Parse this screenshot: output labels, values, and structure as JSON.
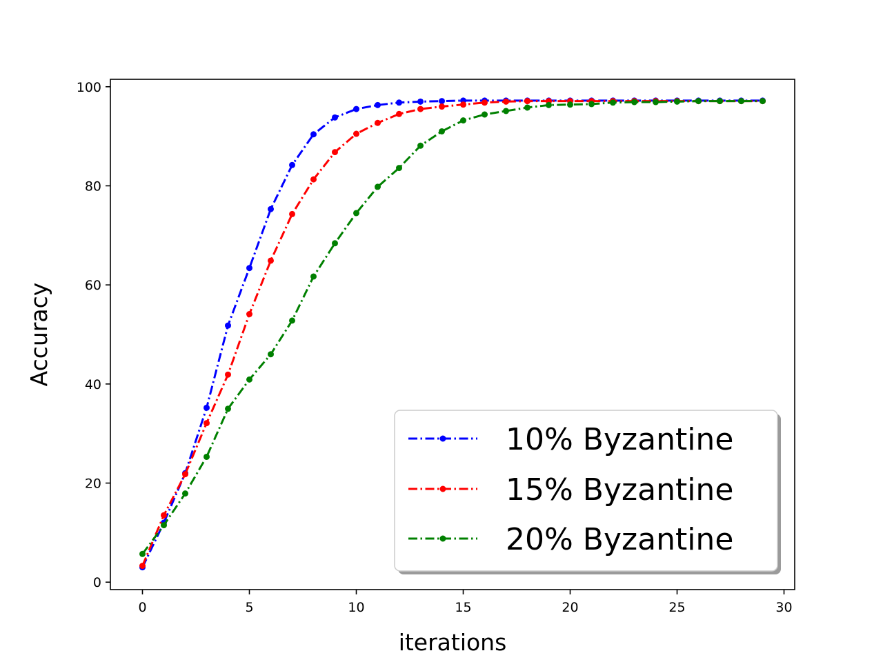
{
  "chart_data": {
    "type": "line",
    "xlabel": "iterations",
    "ylabel": "Accuracy",
    "xlim": [
      -1.5,
      30.5
    ],
    "ylim": [
      -1.5,
      101.5
    ],
    "xticks": [
      0,
      5,
      10,
      15,
      20,
      25,
      30
    ],
    "yticks": [
      0,
      20,
      40,
      60,
      80,
      100
    ],
    "grid": false,
    "legend_position": "bottom-right",
    "x": [
      0,
      1,
      2,
      3,
      4,
      5,
      6,
      7,
      8,
      9,
      10,
      11,
      12,
      13,
      14,
      15,
      16,
      17,
      18,
      19,
      20,
      21,
      22,
      23,
      24,
      25,
      26,
      27,
      28,
      29
    ],
    "series": [
      {
        "name": "10% Byzantine",
        "color": "#0000ff",
        "values": [
          3.0,
          12.0,
          22.0,
          35.2,
          51.8,
          63.4,
          75.3,
          84.2,
          90.4,
          93.8,
          95.5,
          96.3,
          96.8,
          97.0,
          97.1,
          97.2,
          97.2,
          97.2,
          97.2,
          97.2,
          97.2,
          97.2,
          97.2,
          97.2,
          97.2,
          97.2,
          97.2,
          97.2,
          97.2,
          97.2
        ]
      },
      {
        "name": "15% Byzantine",
        "color": "#ff0000",
        "values": [
          3.3,
          13.5,
          21.8,
          32.1,
          41.9,
          54.1,
          64.9,
          74.3,
          81.3,
          86.8,
          90.5,
          92.7,
          94.5,
          95.5,
          96.0,
          96.4,
          96.8,
          97.0,
          97.1,
          97.1,
          97.1,
          97.1,
          97.1,
          97.1,
          97.1,
          97.1,
          97.1,
          97.1,
          97.1,
          97.1
        ]
      },
      {
        "name": "20% Byzantine",
        "color": "#008000",
        "values": [
          5.7,
          11.5,
          17.9,
          25.3,
          35.0,
          40.9,
          46.0,
          52.8,
          61.7,
          68.4,
          74.5,
          79.8,
          83.6,
          88.1,
          91.0,
          93.2,
          94.4,
          95.1,
          95.8,
          96.3,
          96.4,
          96.5,
          96.8,
          96.9,
          96.9,
          97.0,
          97.1,
          97.1,
          97.1,
          97.1
        ]
      }
    ]
  }
}
